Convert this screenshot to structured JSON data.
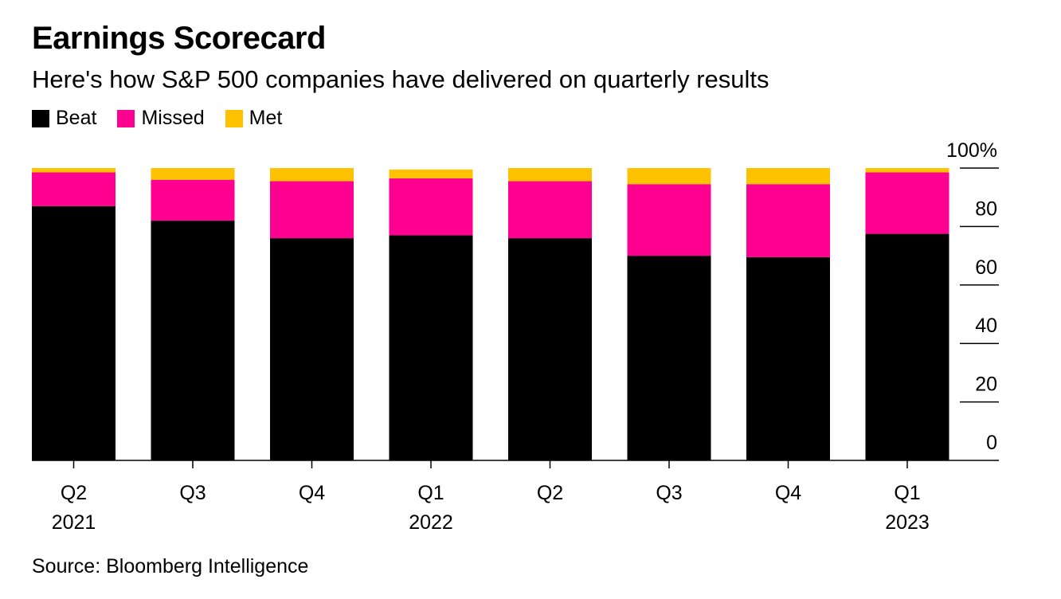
{
  "title": "Earnings Scorecard",
  "subtitle": "Here's how S&P 500 companies have delivered on quarterly results",
  "legend": [
    {
      "label": "Beat",
      "color": "#000000"
    },
    {
      "label": "Missed",
      "color": "#ff0090"
    },
    {
      "label": "Met",
      "color": "#ffc200"
    }
  ],
  "source": "Source: Bloomberg Intelligence",
  "chart_data": {
    "type": "bar",
    "stacked": true,
    "categories": [
      "Q2 2021",
      "Q3 2021",
      "Q4 2021",
      "Q1 2022",
      "Q2 2022",
      "Q3 2022",
      "Q4 2022",
      "Q1 2023"
    ],
    "x_tick_labels": [
      {
        "quarter": "Q2",
        "year": "2021"
      },
      {
        "quarter": "Q3",
        "year": ""
      },
      {
        "quarter": "Q4",
        "year": ""
      },
      {
        "quarter": "Q1",
        "year": "2022"
      },
      {
        "quarter": "Q2",
        "year": ""
      },
      {
        "quarter": "Q3",
        "year": ""
      },
      {
        "quarter": "Q4",
        "year": ""
      },
      {
        "quarter": "Q1",
        "year": "2023"
      }
    ],
    "series": [
      {
        "name": "Beat",
        "color": "#000000",
        "values": [
          87,
          82,
          76,
          77,
          76,
          70,
          69.5,
          77.5
        ]
      },
      {
        "name": "Missed",
        "color": "#ff0090",
        "values": [
          11.5,
          14,
          19.5,
          19.5,
          19.5,
          24.5,
          25,
          21
        ]
      },
      {
        "name": "Met",
        "color": "#ffc200",
        "values": [
          1.5,
          4,
          4.5,
          3,
          4.5,
          5.5,
          5.5,
          1.5
        ]
      }
    ],
    "ylim": [
      0,
      100
    ],
    "y_ticks": [
      {
        "value": 0,
        "label": "0"
      },
      {
        "value": 20,
        "label": "20"
      },
      {
        "value": 40,
        "label": "40"
      },
      {
        "value": 60,
        "label": "60"
      },
      {
        "value": 80,
        "label": "80"
      },
      {
        "value": 100,
        "label": "100%"
      }
    ],
    "y_axis_side": "right",
    "grid": false,
    "legend_position": "top-left"
  }
}
